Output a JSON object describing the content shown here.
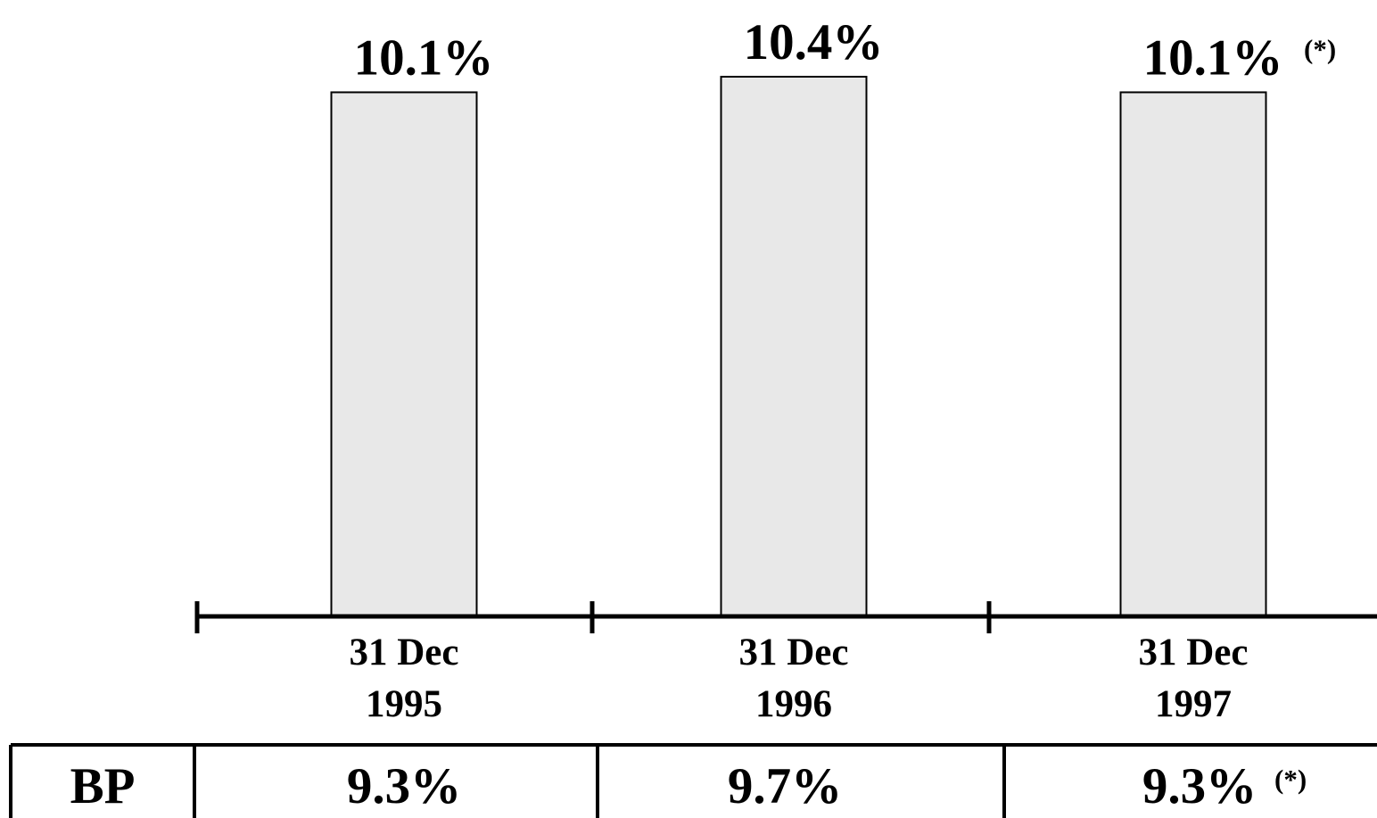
{
  "chart_data": {
    "type": "bar",
    "categories": [
      {
        "line1": "31 Dec",
        "line2": "1995"
      },
      {
        "line1": "31 Dec",
        "line2": "1996"
      },
      {
        "line1": "31 Dec",
        "line2": "1997"
      }
    ],
    "values": [
      10.1,
      10.4,
      10.1
    ],
    "value_labels": [
      "10.1%",
      "10.4%",
      "10.1%"
    ],
    "value_notes": [
      "",
      "",
      "(*)"
    ],
    "ylim": [
      0,
      10.4
    ],
    "grid": false,
    "bar_color": "#e8e8e8",
    "bar_edge_color": "#000000"
  },
  "comparison_table": {
    "row_label": "BP",
    "values": [
      "9.3%",
      "9.7%",
      "9.3%"
    ],
    "notes": [
      "",
      "",
      "(*)"
    ]
  }
}
